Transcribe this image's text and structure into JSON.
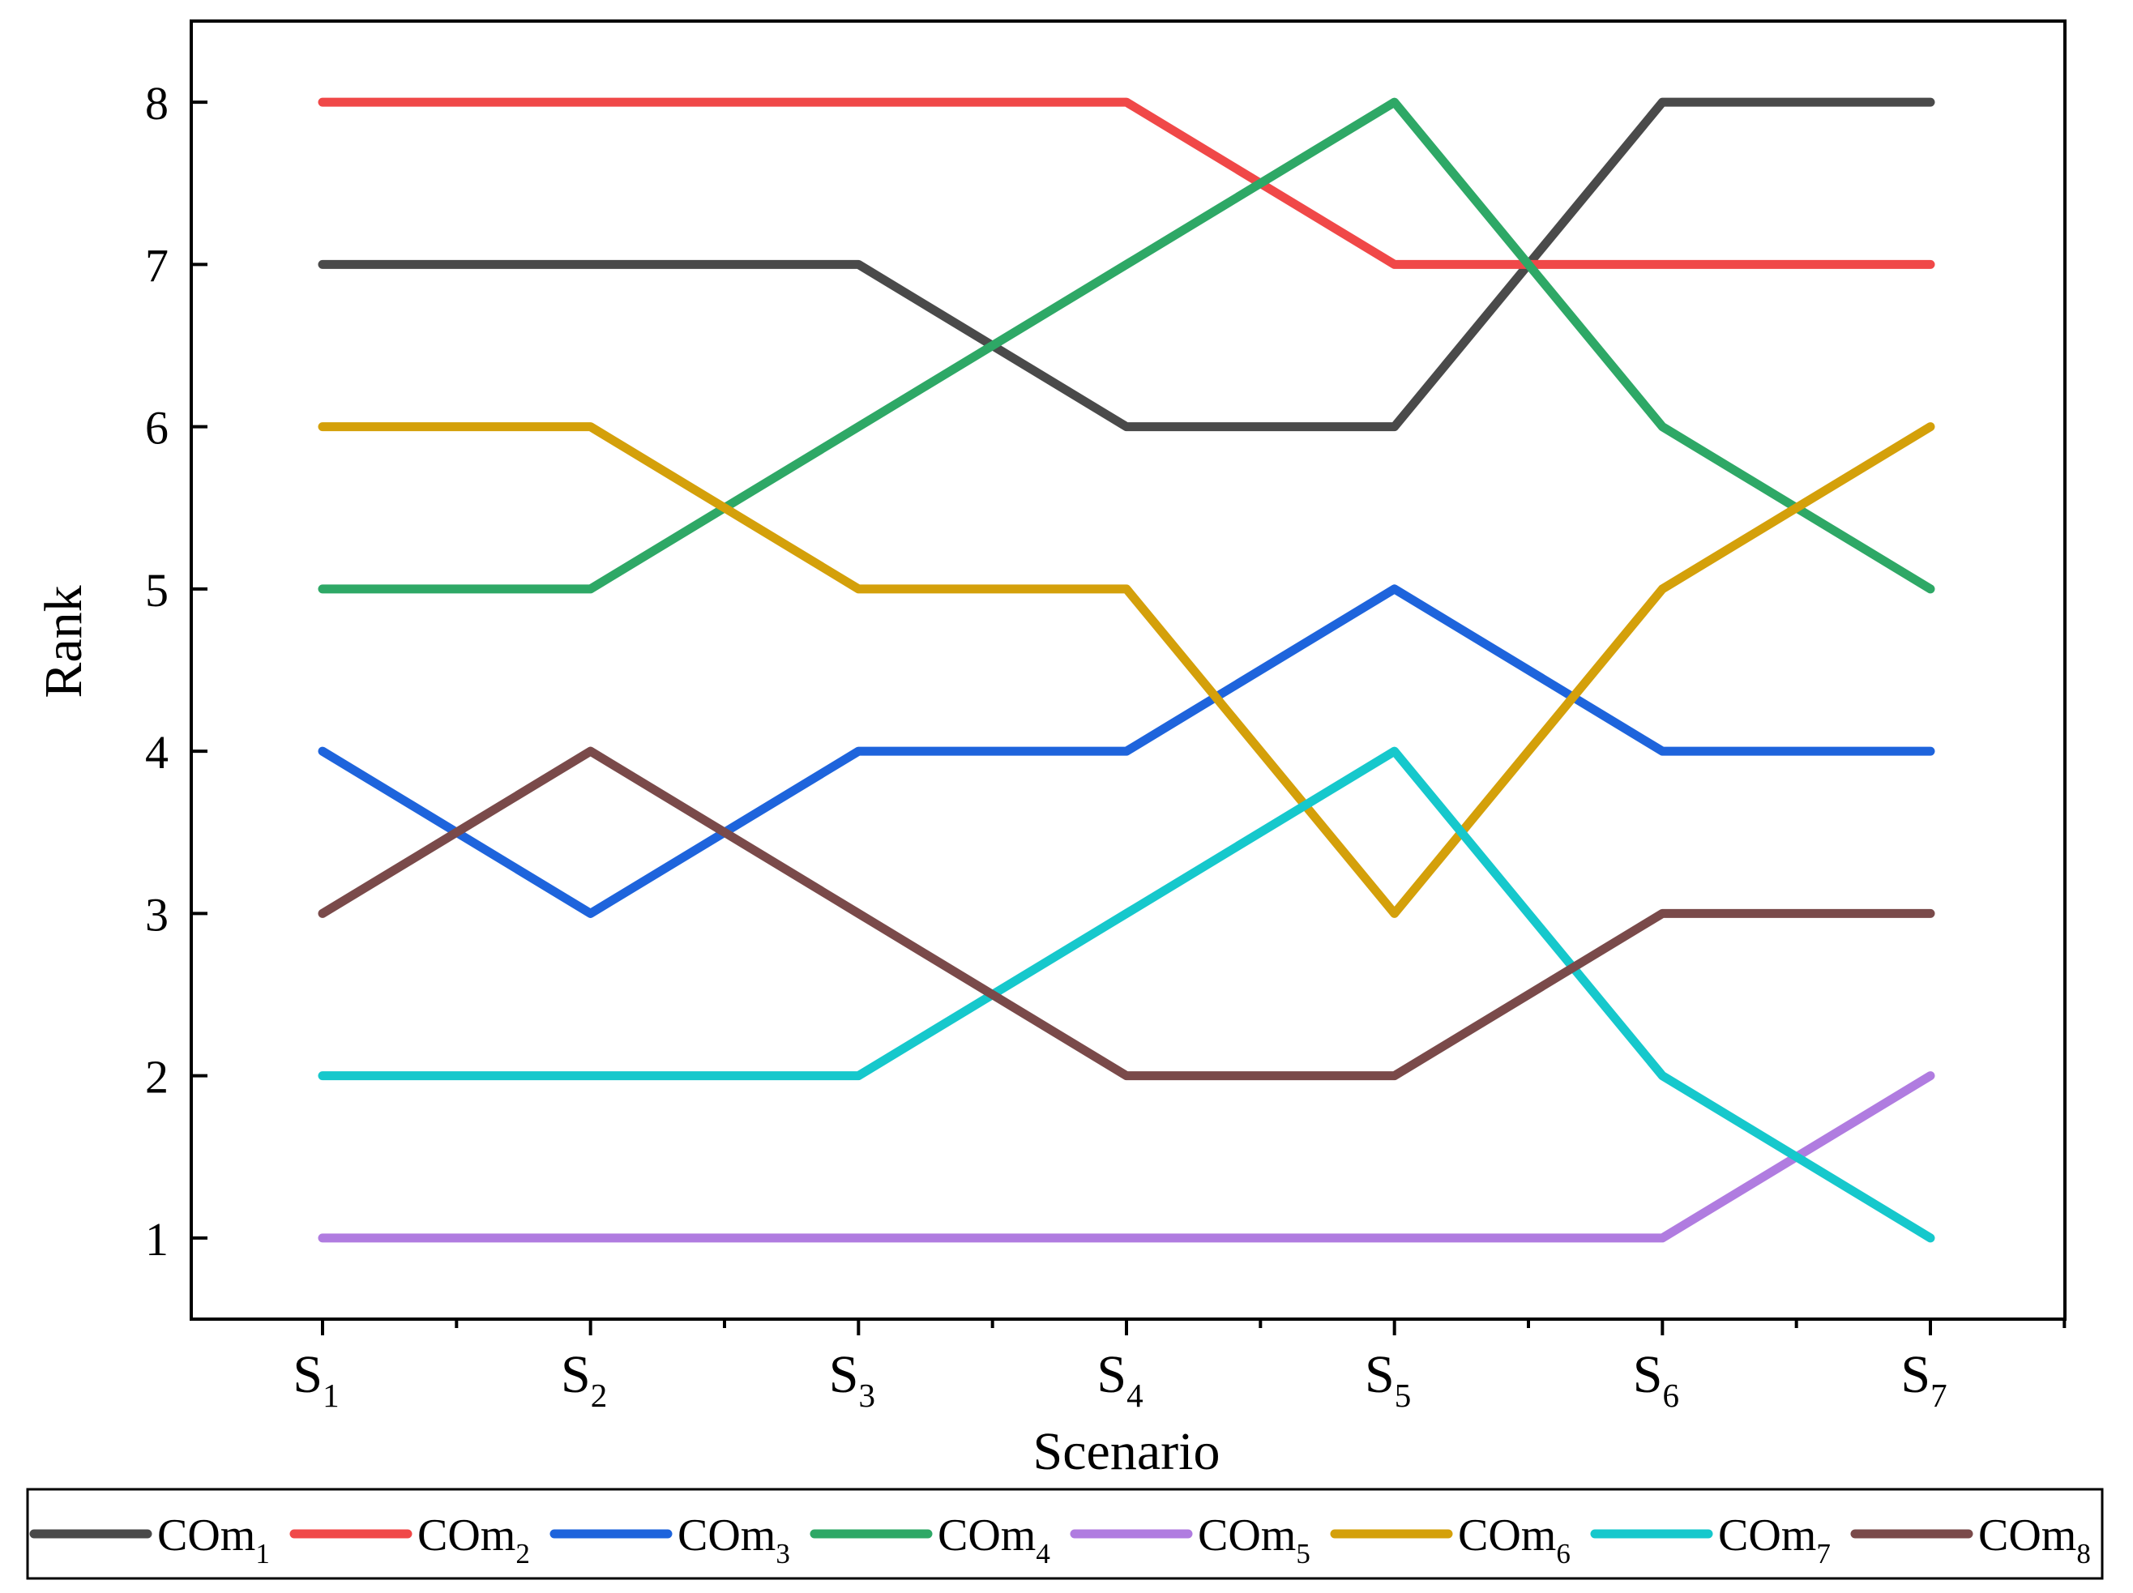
{
  "chart_data": {
    "type": "line",
    "title": "",
    "xlabel": "Scenario",
    "ylabel": "Rank",
    "categories": [
      {
        "base": "S",
        "sub": "1"
      },
      {
        "base": "S",
        "sub": "2"
      },
      {
        "base": "S",
        "sub": "3"
      },
      {
        "base": "S",
        "sub": "4"
      },
      {
        "base": "S",
        "sub": "5"
      },
      {
        "base": "S",
        "sub": "6"
      },
      {
        "base": "S",
        "sub": "7"
      }
    ],
    "ylim": [
      0.5,
      8.5
    ],
    "yticks": [
      1,
      2,
      3,
      4,
      5,
      6,
      7,
      8
    ],
    "grid": false,
    "legend_position": "bottom",
    "series": [
      {
        "name": "COm",
        "sub": "1",
        "color": "#4a4a4a",
        "values": [
          7,
          7,
          7,
          6,
          6,
          8,
          8
        ]
      },
      {
        "name": "COm",
        "sub": "2",
        "color": "#f04848",
        "values": [
          8,
          8,
          8,
          8,
          7,
          7,
          7
        ]
      },
      {
        "name": "COm",
        "sub": "3",
        "color": "#1e64dc",
        "values": [
          4,
          3,
          4,
          4,
          5,
          4,
          4
        ]
      },
      {
        "name": "COm",
        "sub": "4",
        "color": "#2ea866",
        "values": [
          5,
          5,
          6,
          7,
          8,
          6,
          5
        ]
      },
      {
        "name": "COm",
        "sub": "5",
        "color": "#b07ce0",
        "values": [
          1,
          1,
          1,
          1,
          1,
          1,
          2
        ]
      },
      {
        "name": "COm",
        "sub": "6",
        "color": "#d4a00a",
        "values": [
          6,
          6,
          5,
          5,
          3,
          5,
          6
        ]
      },
      {
        "name": "COm",
        "sub": "7",
        "color": "#16c8cc",
        "values": [
          2,
          2,
          2,
          3,
          4,
          2,
          1
        ]
      },
      {
        "name": "COm",
        "sub": "8",
        "color": "#7a4a4a",
        "values": [
          3,
          4,
          3,
          2,
          2,
          3,
          3
        ]
      }
    ]
  }
}
